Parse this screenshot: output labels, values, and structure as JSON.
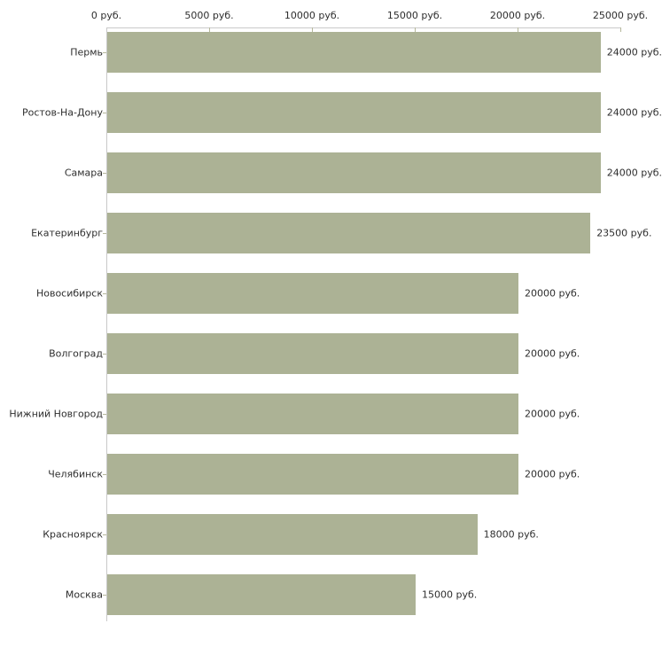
{
  "chart_data": {
    "type": "bar",
    "orientation": "horizontal",
    "title": "",
    "xlabel": "",
    "ylabel": "",
    "unit": "руб.",
    "xlim": [
      0,
      25000
    ],
    "grid": false,
    "legend": null,
    "categories": [
      "Пермь",
      "Ростов-На-Дону",
      "Самара",
      "Екатеринбург",
      "Новосибирск",
      "Волгоград",
      "Нижний Новгород",
      "Челябинск",
      "Красноярск",
      "Москва"
    ],
    "values": [
      24000,
      24000,
      24000,
      23500,
      20000,
      20000,
      20000,
      20000,
      18000,
      15000
    ],
    "value_labels": [
      "24000 руб.",
      "24000 руб.",
      "24000 руб.",
      "23500 руб.",
      "20000 руб.",
      "20000 руб.",
      "20000 руб.",
      "20000 руб.",
      "18000 руб.",
      "15000 руб."
    ],
    "x_ticks": [
      {
        "value": 0,
        "label": "0 руб."
      },
      {
        "value": 5000,
        "label": "5000 руб."
      },
      {
        "value": 10000,
        "label": "10000 руб."
      },
      {
        "value": 15000,
        "label": "15000 руб."
      },
      {
        "value": 20000,
        "label": "20000 руб."
      },
      {
        "value": 25000,
        "label": "25000 руб."
      }
    ],
    "colors": {
      "bar": "#acb295",
      "axis": "#c9c9c9",
      "tick": "#b5b79b",
      "text": "#2e2e2e",
      "background": "#ffffff"
    }
  }
}
